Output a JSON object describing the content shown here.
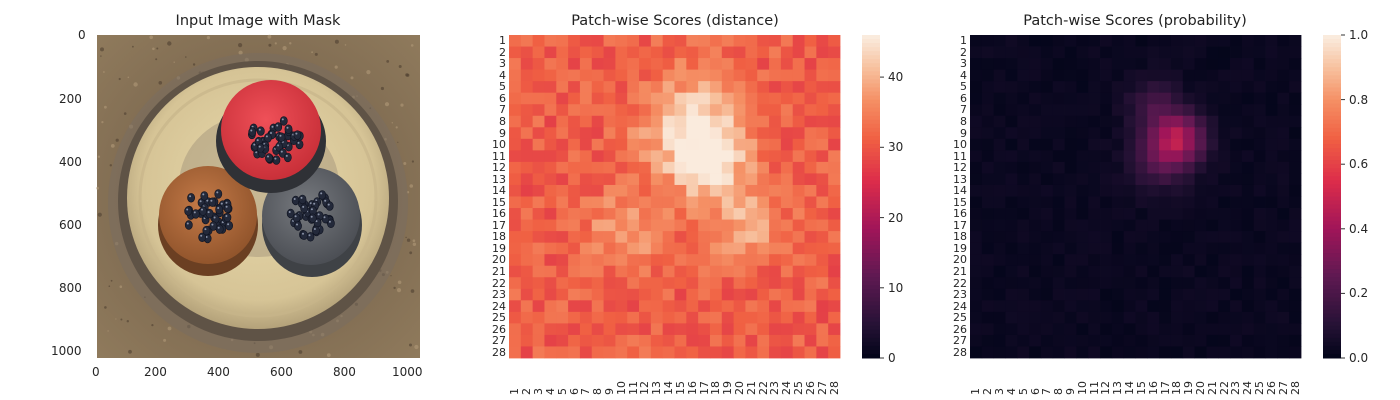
{
  "chart_data": [
    {
      "type": "image",
      "title": "Input Image with Mask",
      "xlim": [
        0,
        1024
      ],
      "ylim": [
        1024,
        0
      ],
      "xticks": [
        0,
        200,
        400,
        600,
        800,
        1000
      ],
      "yticks": [
        0,
        200,
        400,
        600,
        800,
        1000
      ],
      "colors": {
        "background": "#8a7358",
        "plate": "#e2d3a6",
        "rim": "#7d7366",
        "red_cap": "#e6464e",
        "orange_cap": "#b06a3d",
        "gray_cap": "#66696e",
        "berries": "#22283a"
      }
    },
    {
      "type": "heatmap",
      "title": "Patch-wise Scores (distance)",
      "rows": 28,
      "cols": 28,
      "row_labels": [
        "1",
        "2",
        "3",
        "4",
        "5",
        "6",
        "7",
        "8",
        "9",
        "10",
        "11",
        "12",
        "13",
        "14",
        "15",
        "16",
        "17",
        "18",
        "19",
        "20",
        "21",
        "22",
        "23",
        "24",
        "25",
        "26",
        "27",
        "28"
      ],
      "col_labels": [
        "1",
        "2",
        "3",
        "4",
        "5",
        "6",
        "7",
        "8",
        "9",
        "10",
        "11",
        "12",
        "13",
        "14",
        "15",
        "16",
        "17",
        "18",
        "19",
        "20",
        "21",
        "22",
        "23",
        "24",
        "25",
        "26",
        "27",
        "28"
      ],
      "colorbar": {
        "min": 0,
        "max": 46,
        "ticks": [
          "0",
          "10",
          "20",
          "30",
          "40"
        ],
        "colormap": "rocket"
      },
      "background_level": 31,
      "hotspots": [
        {
          "row": 8.5,
          "col": 16.0,
          "peak": 45,
          "spread": 3.0
        },
        {
          "row": 12.0,
          "col": 17.5,
          "peak": 42,
          "spread": 2.2
        },
        {
          "row": 17.5,
          "col": 10.5,
          "peak": 39,
          "spread": 2.3
        },
        {
          "row": 17.0,
          "col": 20.5,
          "peak": 39,
          "spread": 2.3
        }
      ]
    },
    {
      "type": "heatmap",
      "title": "Patch-wise Scores (probability)",
      "rows": 28,
      "cols": 28,
      "row_labels": [
        "1",
        "2",
        "3",
        "4",
        "5",
        "6",
        "7",
        "8",
        "9",
        "10",
        "11",
        "12",
        "13",
        "14",
        "15",
        "16",
        "17",
        "18",
        "19",
        "20",
        "21",
        "22",
        "23",
        "24",
        "25",
        "26",
        "27",
        "28"
      ],
      "col_labels": [
        "1",
        "2",
        "3",
        "4",
        "5",
        "6",
        "7",
        "8",
        "9",
        "10",
        "11",
        "12",
        "13",
        "14",
        "15",
        "16",
        "17",
        "18",
        "19",
        "20",
        "21",
        "22",
        "23",
        "24",
        "25",
        "26",
        "27",
        "28"
      ],
      "colorbar": {
        "min": 0.0,
        "max": 1.0,
        "ticks": [
          "0.0",
          "0.2",
          "0.4",
          "0.6",
          "0.8",
          "1.0"
        ],
        "colormap": "rocket"
      },
      "background_level": 0.02,
      "hotspots": [
        {
          "row": 9.5,
          "col": 18.0,
          "peak": 0.42,
          "spread": 1.6
        },
        {
          "row": 6.5,
          "col": 16.0,
          "peak": 0.16,
          "spread": 1.5
        },
        {
          "row": 11.5,
          "col": 16.5,
          "peak": 0.16,
          "spread": 1.8
        }
      ]
    }
  ]
}
